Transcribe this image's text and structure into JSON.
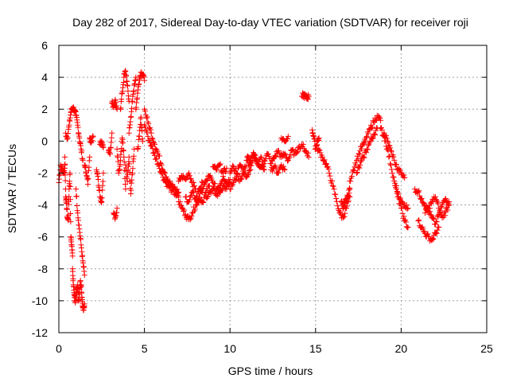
{
  "chart_data": {
    "type": "scatter",
    "title": "Day 282 of 2017, Sidereal Day-to-day VTEC variation (SDTVAR) for receiver roji",
    "xlabel": "GPS time / hours",
    "ylabel": "SDTVAR / TECUs",
    "xlim": [
      0,
      25
    ],
    "ylim": [
      -12,
      6
    ],
    "xticks": [
      0,
      5,
      10,
      15,
      20,
      25
    ],
    "xtick_labels": [
      "0",
      "5",
      "10",
      "15",
      "20",
      "25"
    ],
    "yticks": [
      -12,
      -10,
      -8,
      -6,
      -4,
      -2,
      0,
      2,
      4,
      6
    ],
    "ytick_labels": [
      "-12",
      "-10",
      "-8",
      "-6",
      "-4",
      "-2",
      "0",
      "2",
      "4",
      "6"
    ],
    "grid": true,
    "marker": "+",
    "color": "#ff0000",
    "series": [
      {
        "name": "SDTVAR",
        "segments": [
          {
            "x": [
              0.0,
              0.1,
              0.2,
              0.3,
              0.35
            ],
            "y": [
              -2.6,
              -1.5,
              -1.8,
              -2.0,
              -1.5
            ]
          },
          {
            "x": [
              0.35,
              0.4,
              0.45,
              0.5,
              0.55,
              0.6,
              0.65,
              0.7,
              0.75,
              0.8
            ],
            "y": [
              -1.0,
              -3.5,
              -3.9,
              -4.8,
              -4.9,
              -3.0,
              -2.0,
              -6.0,
              -6.5,
              -7.2
            ]
          },
          {
            "x": [
              0.4,
              0.5,
              0.6,
              0.7,
              0.8,
              0.9,
              1.0,
              1.1,
              1.2,
              1.3,
              1.4
            ],
            "y": [
              0.5,
              0.2,
              1.0,
              1.8,
              2.1,
              2.0,
              1.6,
              1.0,
              0.2,
              -0.5,
              -1.2
            ]
          },
          {
            "x": [
              0.8,
              0.85,
              0.9,
              0.95,
              1.0,
              1.05,
              1.1,
              1.15,
              1.2,
              1.25,
              1.3,
              1.35,
              1.4,
              1.45,
              1.5
            ],
            "y": [
              -8.0,
              -9.0,
              -9.6,
              -10.0,
              -9.8,
              -9.2,
              -9.0,
              -10.0,
              -9.5,
              -8.8,
              -9.0,
              -9.8,
              -10.4,
              -10.6,
              -10.2
            ]
          },
          {
            "x": [
              1.0,
              1.1,
              1.2,
              1.3,
              1.4,
              1.5
            ],
            "y": [
              -3.0,
              -4.5,
              -5.5,
              -6.5,
              -7.5,
              -8.4
            ]
          },
          {
            "x": [
              1.5,
              1.6,
              1.7,
              1.8
            ],
            "y": [
              -1.5,
              -2.0,
              -2.7,
              -1.0
            ]
          },
          {
            "x": [
              1.8,
              1.9,
              2.0
            ],
            "y": [
              0.2,
              -0.1,
              0.3
            ]
          },
          {
            "x": [
              2.2,
              2.3,
              2.4,
              2.5,
              2.6
            ],
            "y": [
              -1.8,
              -2.4,
              -3.5,
              -3.8,
              -2.0
            ]
          },
          {
            "x": [
              2.4,
              2.5,
              2.6
            ],
            "y": [
              -0.2,
              0.0,
              -0.4
            ]
          },
          {
            "x": [
              2.9,
              3.0,
              3.1
            ],
            "y": [
              -0.6,
              -0.8,
              0.5
            ]
          },
          {
            "x": [
              3.1,
              3.2,
              3.3,
              3.4
            ],
            "y": [
              2.4,
              2.2,
              2.6,
              2.0
            ]
          },
          {
            "x": [
              3.2,
              3.3,
              3.4
            ],
            "y": [
              -4.5,
              -4.8,
              -4.2
            ]
          },
          {
            "x": [
              3.4,
              3.5,
              3.6,
              3.7,
              3.8,
              3.9
            ],
            "y": [
              -0.5,
              -2.0,
              -1.2,
              0.2,
              -1.0,
              -3.0
            ]
          },
          {
            "x": [
              3.6,
              3.7,
              3.8,
              3.9,
              4.0,
              4.1
            ],
            "y": [
              2.0,
              3.0,
              4.0,
              4.4,
              3.5,
              2.5
            ]
          },
          {
            "x": [
              3.9,
              4.0,
              4.1,
              4.2,
              4.3,
              4.4
            ],
            "y": [
              -1.5,
              -2.5,
              -1.0,
              -3.3,
              -2.0,
              -0.5
            ]
          },
          {
            "x": [
              4.1,
              4.2,
              4.3,
              4.4,
              4.5
            ],
            "y": [
              0.5,
              1.5,
              2.5,
              3.5,
              4.0
            ]
          },
          {
            "x": [
              4.5,
              4.6,
              4.7,
              4.8,
              4.9,
              5.0
            ],
            "y": [
              2.0,
              3.0,
              3.9,
              4.3,
              4.2,
              3.8
            ]
          },
          {
            "x": [
              4.6,
              4.7,
              4.8,
              4.9
            ],
            "y": [
              -0.5,
              0.3,
              1.5,
              0.0
            ]
          },
          {
            "x": [
              5.0,
              5.2,
              5.4,
              5.6,
              5.8,
              6.0,
              6.2,
              6.4,
              6.6,
              6.8,
              7.0
            ],
            "y": [
              2.0,
              1.2,
              0.5,
              -0.2,
              -0.8,
              -1.5,
              -2.0,
              -2.5,
              -2.8,
              -3.0,
              -3.2
            ]
          },
          {
            "x": [
              5.0,
              5.2,
              5.4,
              5.6,
              5.8,
              6.0,
              6.2,
              6.4,
              6.6,
              6.8,
              7.0
            ],
            "y": [
              1.0,
              0.3,
              -0.3,
              -0.9,
              -1.4,
              -2.0,
              -2.5,
              -2.8,
              -3.1,
              -3.3,
              -3.5
            ]
          },
          {
            "x": [
              7.0,
              7.2,
              7.4,
              7.6,
              7.8,
              8.0
            ],
            "y": [
              -2.5,
              -2.2,
              -2.4,
              -2.0,
              -2.6,
              -3.0
            ]
          },
          {
            "x": [
              7.0,
              7.2,
              7.4,
              7.6,
              7.8,
              8.0,
              8.2,
              8.4,
              8.6,
              8.8
            ],
            "y": [
              -3.8,
              -4.2,
              -4.6,
              -4.9,
              -4.5,
              -4.0,
              -3.6,
              -3.8,
              -3.2,
              -2.8
            ]
          },
          {
            "x": [
              7.4,
              7.6,
              7.8,
              8.0,
              8.2,
              8.4
            ],
            "y": [
              -3.5,
              -3.8,
              -3.2,
              -3.6,
              -3.0,
              -2.6
            ]
          },
          {
            "x": [
              8.0,
              8.2,
              8.4,
              8.6,
              8.8,
              9.0,
              9.2,
              9.4,
              9.6,
              9.8,
              10.0
            ],
            "y": [
              -4.0,
              -3.5,
              -3.0,
              -2.5,
              -2.2,
              -2.6,
              -3.0,
              -2.8,
              -2.2,
              -2.6,
              -2.4
            ]
          },
          {
            "x": [
              8.6,
              8.8,
              9.0,
              9.2,
              9.4,
              9.6,
              9.8,
              10.0
            ],
            "y": [
              -3.5,
              -3.2,
              -3.0,
              -3.4,
              -3.2,
              -2.8,
              -3.0,
              -2.6
            ]
          },
          {
            "x": [
              9.0,
              9.2,
              9.4,
              9.6,
              9.8
            ],
            "y": [
              -1.6,
              -1.8,
              -1.5,
              -2.0,
              -1.7
            ]
          },
          {
            "x": [
              10.0,
              10.2,
              10.4,
              10.6,
              10.8,
              11.0,
              11.2,
              11.4,
              11.6,
              11.8,
              12.0
            ],
            "y": [
              -2.0,
              -1.6,
              -2.0,
              -1.5,
              -1.8,
              -1.2,
              -1.5,
              -1.0,
              -1.3,
              -1.6,
              -1.4
            ]
          },
          {
            "x": [
              10.0,
              10.2,
              10.4,
              10.6,
              10.8,
              11.0,
              11.2
            ],
            "y": [
              -3.0,
              -2.6,
              -2.2,
              -2.4,
              -2.0,
              -2.2,
              -1.8
            ]
          },
          {
            "x": [
              11.0,
              11.2,
              11.4,
              11.6,
              11.8,
              12.0
            ],
            "y": [
              -1.0,
              -1.2,
              -0.8,
              -1.4,
              -1.0,
              -1.8
            ]
          },
          {
            "x": [
              12.0,
              12.2,
              12.4,
              12.6,
              12.8,
              13.0,
              13.2,
              13.4,
              13.6,
              13.8,
              14.0
            ],
            "y": [
              -1.2,
              -0.8,
              -1.4,
              -1.0,
              -0.6,
              -1.0,
              -0.8,
              -1.2,
              -0.6,
              -0.8,
              -0.4
            ]
          },
          {
            "x": [
              12.4,
              12.6,
              12.8,
              13.0,
              13.2
            ],
            "y": [
              -1.8,
              -1.6,
              -2.0,
              -1.5,
              -1.8
            ]
          },
          {
            "x": [
              13.0,
              13.2,
              13.4
            ],
            "y": [
              0.2,
              0.0,
              0.3
            ]
          },
          {
            "x": [
              14.0,
              14.2,
              14.4,
              14.6
            ],
            "y": [
              -0.4,
              -0.2,
              -0.6,
              -1.0
            ]
          },
          {
            "x": [
              14.2,
              14.3,
              14.4,
              14.5,
              14.6
            ],
            "y": [
              2.8,
              2.9,
              2.8,
              2.7,
              2.8
            ]
          },
          {
            "x": [
              14.8,
              14.9,
              15.0,
              15.1,
              15.2
            ],
            "y": [
              0.7,
              0.3,
              -0.5,
              0.0,
              0.2
            ]
          },
          {
            "x": [
              15.0,
              15.2,
              15.4,
              15.6,
              15.8,
              16.0,
              16.2,
              16.4,
              16.6,
              16.8,
              17.0
            ],
            "y": [
              -0.3,
              -0.6,
              -1.0,
              -1.4,
              -2.0,
              -2.8,
              -3.6,
              -4.5,
              -4.8,
              -4.2,
              -3.5
            ]
          },
          {
            "x": [
              16.5,
              16.6,
              16.7,
              16.8,
              16.9,
              17.0
            ],
            "y": [
              -3.8,
              -4.2,
              -3.9,
              -3.6,
              -3.4,
              -3.0
            ]
          },
          {
            "x": [
              17.0,
              17.2,
              17.4,
              17.6,
              17.8,
              18.0,
              18.2,
              18.4,
              18.6,
              18.8
            ],
            "y": [
              -2.5,
              -1.8,
              -1.2,
              -0.6,
              -0.2,
              0.3,
              0.8,
              1.2,
              1.6,
              1.3
            ]
          },
          {
            "x": [
              17.4,
              17.6,
              17.8,
              18.0,
              18.2,
              18.4,
              18.6
            ],
            "y": [
              -2.0,
              -1.5,
              -1.0,
              -0.5,
              0.0,
              0.4,
              0.8
            ]
          },
          {
            "x": [
              18.8,
              19.0,
              19.2,
              19.4,
              19.6,
              19.8,
              20.0,
              20.2,
              20.4
            ],
            "y": [
              0.8,
              0.3,
              -0.5,
              -1.5,
              -2.5,
              -3.5,
              -4.2,
              -5.0,
              -5.4
            ]
          },
          {
            "x": [
              19.0,
              19.2,
              19.4,
              19.6,
              19.8,
              20.0,
              20.2
            ],
            "y": [
              0.5,
              0.0,
              -0.6,
              -1.2,
              -1.8,
              -2.0,
              -2.3
            ]
          },
          {
            "x": [
              19.6,
              19.8,
              20.0,
              20.2,
              20.4
            ],
            "y": [
              -2.5,
              -3.2,
              -3.8,
              -4.0,
              -4.2
            ]
          },
          {
            "x": [
              20.8,
              21.0,
              21.2,
              21.4,
              21.6,
              21.8,
              22.0,
              22.2,
              22.4,
              22.6,
              22.8
            ],
            "y": [
              -3.0,
              -3.2,
              -3.6,
              -4.0,
              -4.4,
              -4.8,
              -5.2,
              -4.6,
              -4.0,
              -3.6,
              -3.8
            ]
          },
          {
            "x": [
              21.0,
              21.2,
              21.4,
              21.6,
              21.8,
              22.0,
              22.2
            ],
            "y": [
              -5.0,
              -5.4,
              -5.8,
              -6.0,
              -6.2,
              -5.8,
              -5.4
            ]
          },
          {
            "x": [
              21.4,
              21.6,
              21.8,
              22.0,
              22.2,
              22.4,
              22.6,
              22.8
            ],
            "y": [
              -4.5,
              -4.2,
              -3.8,
              -3.5,
              -4.2,
              -4.8,
              -4.4,
              -4.0
            ]
          }
        ]
      }
    ]
  }
}
